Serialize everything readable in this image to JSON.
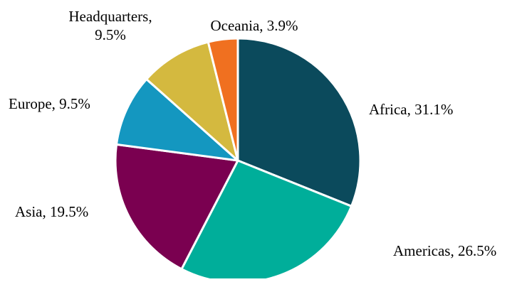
{
  "chart_data": {
    "type": "pie",
    "title": "",
    "slices": [
      {
        "label": "Africa",
        "value": 31.1,
        "label_text": "Africa, 31.1%",
        "color": "#0b4a5c"
      },
      {
        "label": "Americas",
        "value": 26.5,
        "label_text": "Americas, 26.5%",
        "color": "#00ae9a"
      },
      {
        "label": "Asia",
        "value": 19.5,
        "label_text": "Asia, 19.5%",
        "color": "#7a0050"
      },
      {
        "label": "Europe",
        "value": 9.5,
        "label_text": "Europe, 9.5%",
        "color": "#1497c0"
      },
      {
        "label": "Headquarters",
        "value": 9.5,
        "label_text": "Headquarters,\n9.5%",
        "color": "#d4b93f"
      },
      {
        "label": "Oceania",
        "value": 3.9,
        "label_text": "Oceania, 3.9%",
        "color": "#f07020"
      }
    ],
    "start_angle": "top",
    "direction": "clockwise",
    "legend": "none",
    "data_labels": "outside"
  }
}
